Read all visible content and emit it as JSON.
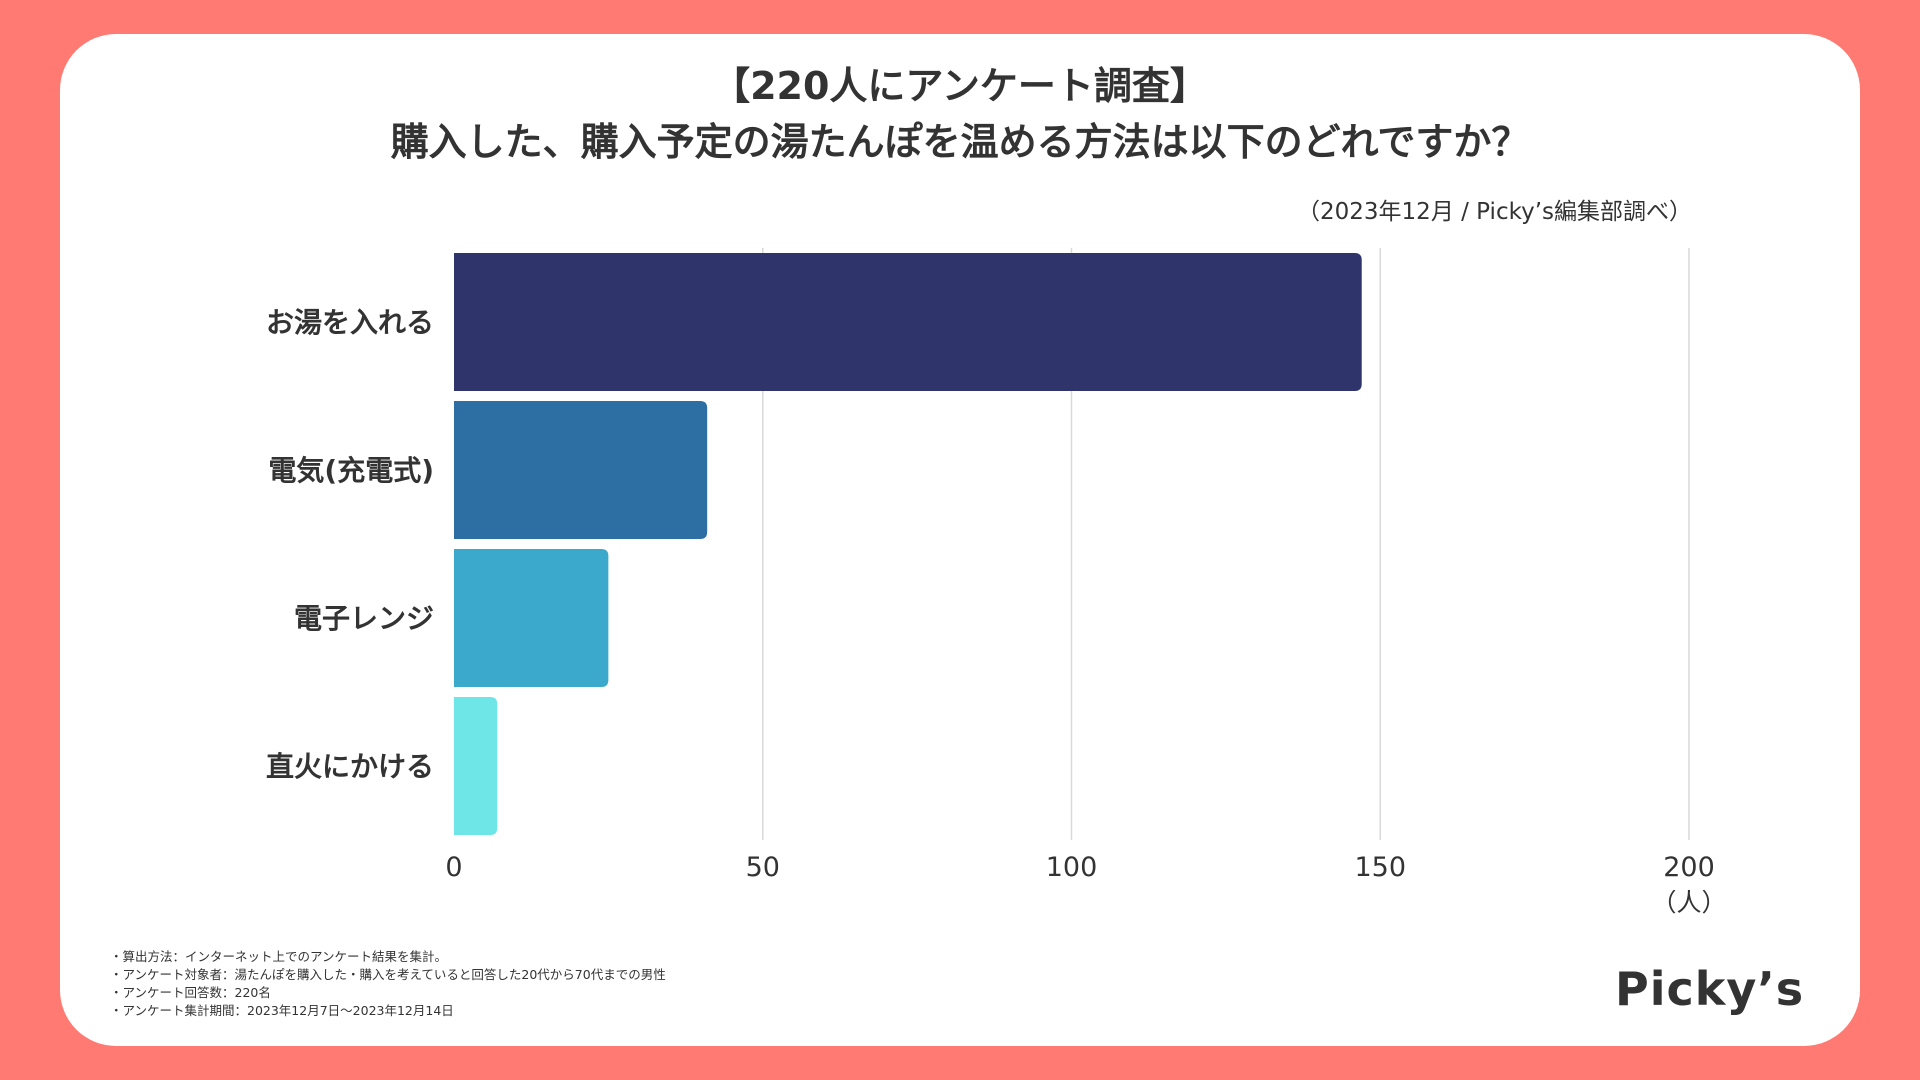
{
  "title_line1": "【220人にアンケート調査】",
  "title_line2": "購入した、購入予定の湯たんぽを温める方法は以下のどれですか？",
  "source": "（2023年12月 / Picky’s編集部調べ）",
  "notes": [
    "・算出方法：インターネット上でのアンケート結果を集計。",
    "・アンケート対象者：湯たんぽを購入した・購入を考えていると回答した20代から70代までの男性",
    "・アンケート回答数：220名",
    "・アンケート集計期間：2023年12月7日〜2023年12月14日"
  ],
  "logo": "Picky’s",
  "colors": {
    "background": "#FF7A72",
    "card": "#FFFFFF",
    "text": "#333333",
    "grid": "#D9D9D9"
  },
  "chart_data": {
    "type": "bar",
    "orientation": "horizontal",
    "categories": [
      "お湯を入れる",
      "電気(充電式)",
      "電子レンジ",
      "直火にかける"
    ],
    "values": [
      147,
      41,
      25,
      7
    ],
    "bar_colors": [
      "#2F356B",
      "#2E6FA3",
      "#3BA9CC",
      "#6EE5E7"
    ],
    "xlim": [
      0,
      200
    ],
    "xticks": [
      0,
      50,
      100,
      150,
      200
    ],
    "xticks_labels": [
      "0",
      "50",
      "100",
      "150",
      "200"
    ],
    "xunit": "（人）",
    "grid": true
  }
}
